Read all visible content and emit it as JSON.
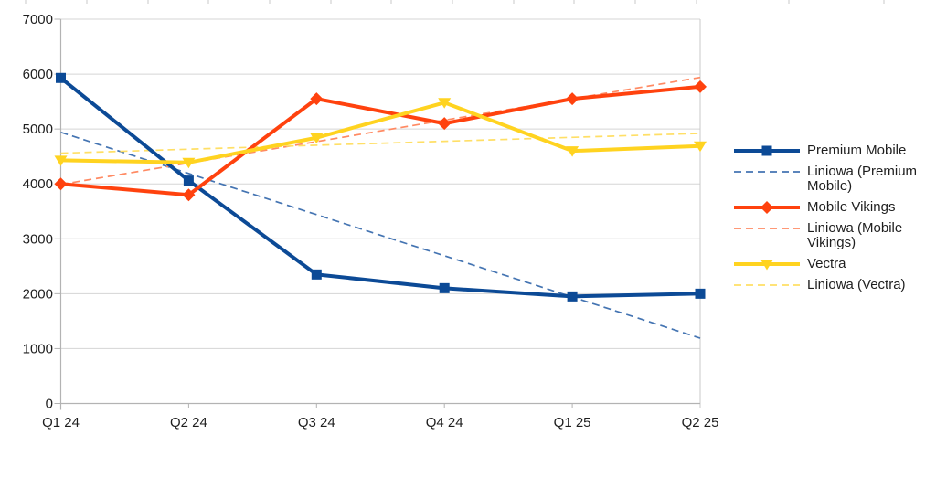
{
  "chart_data": {
    "type": "line",
    "title": "",
    "xlabel": "",
    "ylabel": "",
    "categories": [
      "Q1 24",
      "Q2 24",
      "Q3 24",
      "Q4 24",
      "Q1 25",
      "Q2 25"
    ],
    "ylim": [
      0,
      7000
    ],
    "yticks": [
      0,
      1000,
      2000,
      3000,
      4000,
      5000,
      6000,
      7000
    ],
    "grid": "horizontal",
    "legend_position": "right",
    "background_color": "#ffffff",
    "gridline_color": "#d5d5d5",
    "axis_color": "#b3b3b3",
    "text_color": "#1e1e1e",
    "series": [
      {
        "name": "Premium Mobile",
        "type": "line",
        "style": "solid",
        "marker": "square",
        "color": "#0c4a96",
        "values": [
          5930,
          4060,
          2350,
          2100,
          1950,
          2000
        ]
      },
      {
        "name": "Liniowa (Premium Mobile)",
        "type": "trendline",
        "of": "Premium Mobile",
        "style": "dashed",
        "marker": "none",
        "color": "#4474b2",
        "endpoint_values": [
          4940,
          1190
        ]
      },
      {
        "name": "Mobile Vikings",
        "type": "line",
        "style": "solid",
        "marker": "diamond",
        "color": "#ff420e",
        "values": [
          4000,
          3800,
          5550,
          5100,
          5550,
          5770
        ]
      },
      {
        "name": "Liniowa (Mobile Vikings)",
        "type": "trendline",
        "of": "Mobile Vikings",
        "style": "dashed",
        "marker": "none",
        "color": "#ff8a63",
        "endpoint_values": [
          3990,
          5940
        ]
      },
      {
        "name": "Vectra",
        "type": "line",
        "style": "solid",
        "marker": "triangle-down",
        "color": "#ffd320",
        "values": [
          4430,
          4390,
          4840,
          5480,
          4600,
          4690
        ]
      },
      {
        "name": "Liniowa (Vectra)",
        "type": "trendline",
        "of": "Vectra",
        "style": "dashed",
        "marker": "none",
        "color": "#ffdf66",
        "endpoint_values": [
          4560,
          4920
        ]
      }
    ]
  }
}
